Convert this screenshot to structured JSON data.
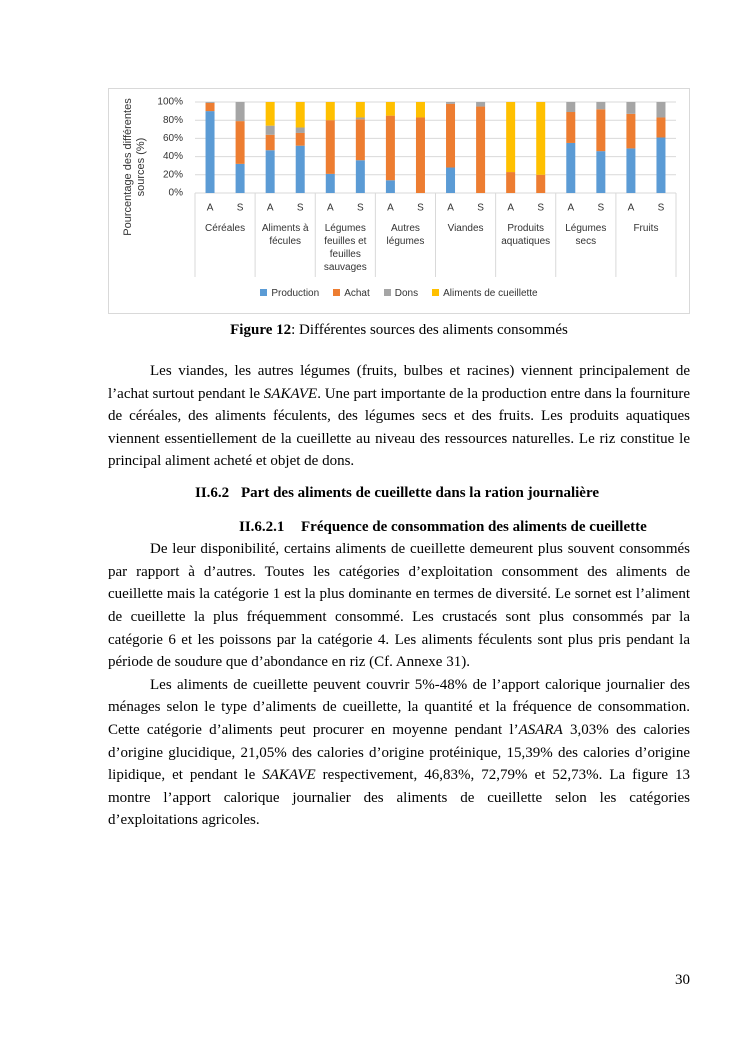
{
  "chart_data": {
    "type": "stacked-bar",
    "y_label": "Pourcentage des différentes sources (%)",
    "categories": [
      "A",
      "S",
      "A",
      "S",
      "A",
      "S",
      "A",
      "S",
      "A",
      "S",
      "A",
      "S",
      "A",
      "S",
      "A",
      "S"
    ],
    "groups": [
      "Céréales",
      "Aliments à fécules",
      "Légumes feuilles et feuilles sauvages",
      "Autres légumes",
      "Viandes",
      "Produits aquatiques",
      "Légumes secs",
      "Fruits"
    ],
    "series": [
      {
        "name": "Production",
        "color": "#5b9bd5",
        "values": [
          90,
          32,
          47,
          52,
          21,
          36,
          14,
          0,
          28,
          0,
          0,
          0,
          55,
          46,
          49,
          61
        ]
      },
      {
        "name": "Achat",
        "color": "#ed7d31",
        "values": [
          9,
          47,
          17,
          14,
          59,
          45,
          71,
          83,
          70,
          95,
          23,
          20,
          34,
          46,
          38,
          22
        ]
      },
      {
        "name": "Dons",
        "color": "#a5a5a5",
        "values": [
          1,
          21,
          10,
          6,
          0,
          2,
          0,
          0,
          2,
          5,
          0,
          0,
          11,
          8,
          13,
          17
        ]
      },
      {
        "name": "Aliments de cueillette",
        "color": "#ffc000",
        "values": [
          0,
          0,
          26,
          28,
          20,
          17,
          15,
          17,
          0,
          0,
          77,
          80,
          0,
          0,
          0,
          0
        ]
      }
    ],
    "ylim": [
      0,
      100
    ],
    "yticks": [
      {
        "value": 0,
        "label": "0%"
      },
      {
        "value": 20,
        "label": "20%"
      },
      {
        "value": 40,
        "label": "40%"
      },
      {
        "value": 60,
        "label": "60%"
      },
      {
        "value": 80,
        "label": "80%"
      },
      {
        "value": 100,
        "label": "100%"
      }
    ],
    "grid": true,
    "legend": "bottom"
  },
  "caption": {
    "label": "Figure 12",
    "text": ": Différentes sources des aliments consommés"
  },
  "paragraphs": [
    [
      "Les viandes, les autres légumes (fruits, bulbes et racines) viennent principalement de l’achat surtout pendant le ",
      {
        "text": "SAKAVE",
        "italic": true
      },
      ". Une part importante de la production entre dans la fourniture de céréales, des aliments féculents, des légumes secs et des fruits. Les produits aquatiques viennent essentiellement de la cueillette au niveau des ressources naturelles. Le riz constitue le principal aliment acheté et objet de dons."
    ],
    [
      "De leur disponibilité, certains aliments de cueillette demeurent plus souvent consommés par rapport à d’autres. Toutes les catégories d’exploitation consomment des aliments de cueillette mais la catégorie 1 est la plus dominante en termes de diversité. Le sornet est l’aliment de cueillette la plus fréquemment consommé. Les crustacés sont plus consommés par la catégorie 6 et les poissons par la catégorie 4. Les aliments féculents sont plus pris pendant la période de soudure que d’abondance en riz (Cf. Annexe 31)."
    ],
    [
      "Les aliments de cueillette peuvent couvrir 5%-48% de l’apport calorique journalier des ménages selon le type d’aliments de cueillette, la quantité et la fréquence de consommation. Cette catégorie d’aliments peut procurer en moyenne pendant l’",
      {
        "text": "ASARA",
        "italic": true
      },
      " 3,03% des calories d’origine glucidique, 21,05% des calories d’origine protéinique, 15,39% des calories d’origine lipidique, et pendant le ",
      {
        "text": "SAKAVE",
        "italic": true
      },
      " respectivement, 46,83%, 72,79% et 52,73%. La figure 13 montre l’apport calorique journalier des aliments de cueillette selon les catégories d’exploitations agricoles."
    ]
  ],
  "headings": [
    {
      "number": "II.6.2",
      "title": "Part des aliments de cueillette dans la ration journalière"
    },
    {
      "number": "II.6.2.1",
      "title": "Fréquence de consommation des aliments de cueillette"
    }
  ],
  "page_number": "30"
}
